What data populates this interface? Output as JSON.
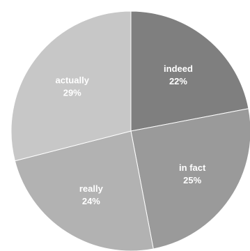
{
  "chart_data": {
    "type": "pie",
    "title": "",
    "start_angle_deg": 0,
    "direction": "clockwise",
    "slices": [
      {
        "label": "indeed",
        "value": 22,
        "value_label": "22%",
        "color": "#7f7f7f"
      },
      {
        "label": "in fact",
        "value": 25,
        "value_label": "25%",
        "color": "#9a9a9a"
      },
      {
        "label": "really",
        "value": 24,
        "value_label": "24%",
        "color": "#b2b2b2"
      },
      {
        "label": "actually",
        "value": 29,
        "value_label": "29%",
        "color": "#c7c7c7"
      }
    ],
    "legend": "none"
  }
}
